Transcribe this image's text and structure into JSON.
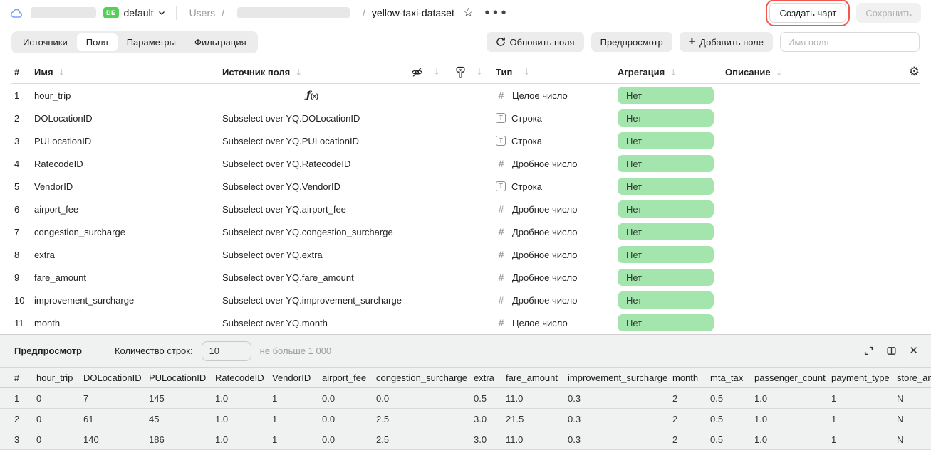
{
  "topbar": {
    "project_badge": "DE",
    "project_name": "default",
    "breadcrumb_root": "Users",
    "breadcrumb_sep": "/",
    "dataset_name": "yellow-taxi-dataset",
    "create_chart_label": "Создать чарт",
    "save_label": "Сохранить"
  },
  "tabs": {
    "items": [
      {
        "label": "Источники",
        "active": false
      },
      {
        "label": "Поля",
        "active": true
      },
      {
        "label": "Параметры",
        "active": false
      },
      {
        "label": "Фильтрация",
        "active": false
      }
    ]
  },
  "toolbar": {
    "refresh_fields_label": "Обновить поля",
    "preview_label": "Предпросмотр",
    "add_field_label": "Добавить поле",
    "field_name_placeholder": "Имя поля"
  },
  "fields_table": {
    "headers": {
      "index": "#",
      "name": "Имя",
      "source": "Источник поля",
      "type": "Тип",
      "aggregation": "Агрегация",
      "description": "Описание"
    },
    "sort_icon": "↓",
    "formula_glyph": {
      "main": "ƒ",
      "sub": "(x)"
    },
    "rows": [
      {
        "index": "1",
        "name": "hour_trip",
        "source": "",
        "formula": true,
        "type": "Целое число",
        "type_kind": "integer",
        "aggregation": "Нет",
        "description": ""
      },
      {
        "index": "2",
        "name": "DOLocationID",
        "source": "Subselect over YQ.DOLocationID",
        "formula": false,
        "type": "Строка",
        "type_kind": "string",
        "aggregation": "Нет",
        "description": ""
      },
      {
        "index": "3",
        "name": "PULocationID",
        "source": "Subselect over YQ.PULocationID",
        "formula": false,
        "type": "Строка",
        "type_kind": "string",
        "aggregation": "Нет",
        "description": ""
      },
      {
        "index": "4",
        "name": "RatecodeID",
        "source": "Subselect over YQ.RatecodeID",
        "formula": false,
        "type": "Дробное число",
        "type_kind": "float",
        "aggregation": "Нет",
        "description": ""
      },
      {
        "index": "5",
        "name": "VendorID",
        "source": "Subselect over YQ.VendorID",
        "formula": false,
        "type": "Строка",
        "type_kind": "string",
        "aggregation": "Нет",
        "description": ""
      },
      {
        "index": "6",
        "name": "airport_fee",
        "source": "Subselect over YQ.airport_fee",
        "formula": false,
        "type": "Дробное число",
        "type_kind": "float",
        "aggregation": "Нет",
        "description": ""
      },
      {
        "index": "7",
        "name": "congestion_surcharge",
        "source": "Subselect over YQ.congestion_surcharge",
        "formula": false,
        "type": "Дробное число",
        "type_kind": "float",
        "aggregation": "Нет",
        "description": ""
      },
      {
        "index": "8",
        "name": "extra",
        "source": "Subselect over YQ.extra",
        "formula": false,
        "type": "Дробное число",
        "type_kind": "float",
        "aggregation": "Нет",
        "description": ""
      },
      {
        "index": "9",
        "name": "fare_amount",
        "source": "Subselect over YQ.fare_amount",
        "formula": false,
        "type": "Дробное число",
        "type_kind": "float",
        "aggregation": "Нет",
        "description": ""
      },
      {
        "index": "10",
        "name": "improvement_surcharge",
        "source": "Subselect over YQ.improvement_surcharge",
        "formula": false,
        "type": "Дробное число",
        "type_kind": "float",
        "aggregation": "Нет",
        "description": ""
      },
      {
        "index": "11",
        "name": "month",
        "source": "Subselect over YQ.month",
        "formula": false,
        "type": "Целое число",
        "type_kind": "integer",
        "aggregation": "Нет",
        "description": ""
      }
    ]
  },
  "preview": {
    "title": "Предпросмотр",
    "row_count_label": "Количество строк:",
    "row_count_value": "10",
    "row_count_hint": "не больше 1 000",
    "table": {
      "columns": [
        "#",
        "hour_trip",
        "DOLocationID",
        "PULocationID",
        "RatecodeID",
        "VendorID",
        "airport_fee",
        "congestion_surcharge",
        "extra",
        "fare_amount",
        "improvement_surcharge",
        "month",
        "mta_tax",
        "passenger_count",
        "payment_type",
        "store_and_fwd_flag"
      ],
      "rows": [
        [
          "1",
          "0",
          "7",
          "145",
          "1.0",
          "1",
          "0.0",
          "0.0",
          "0.5",
          "11.0",
          "0.3",
          "2",
          "0.5",
          "1.0",
          "1",
          "N"
        ],
        [
          "2",
          "0",
          "61",
          "45",
          "1.0",
          "1",
          "0.0",
          "2.5",
          "3.0",
          "21.5",
          "0.3",
          "2",
          "0.5",
          "1.0",
          "1",
          "N"
        ],
        [
          "3",
          "0",
          "140",
          "186",
          "1.0",
          "1",
          "0.0",
          "2.5",
          "3.0",
          "11.0",
          "0.3",
          "2",
          "0.5",
          "1.0",
          "1",
          "N"
        ]
      ]
    }
  },
  "colors": {
    "aggregation_pill": "#a3e5ac",
    "project_badge": "#54d154",
    "annotation_red": "#f2564d"
  }
}
